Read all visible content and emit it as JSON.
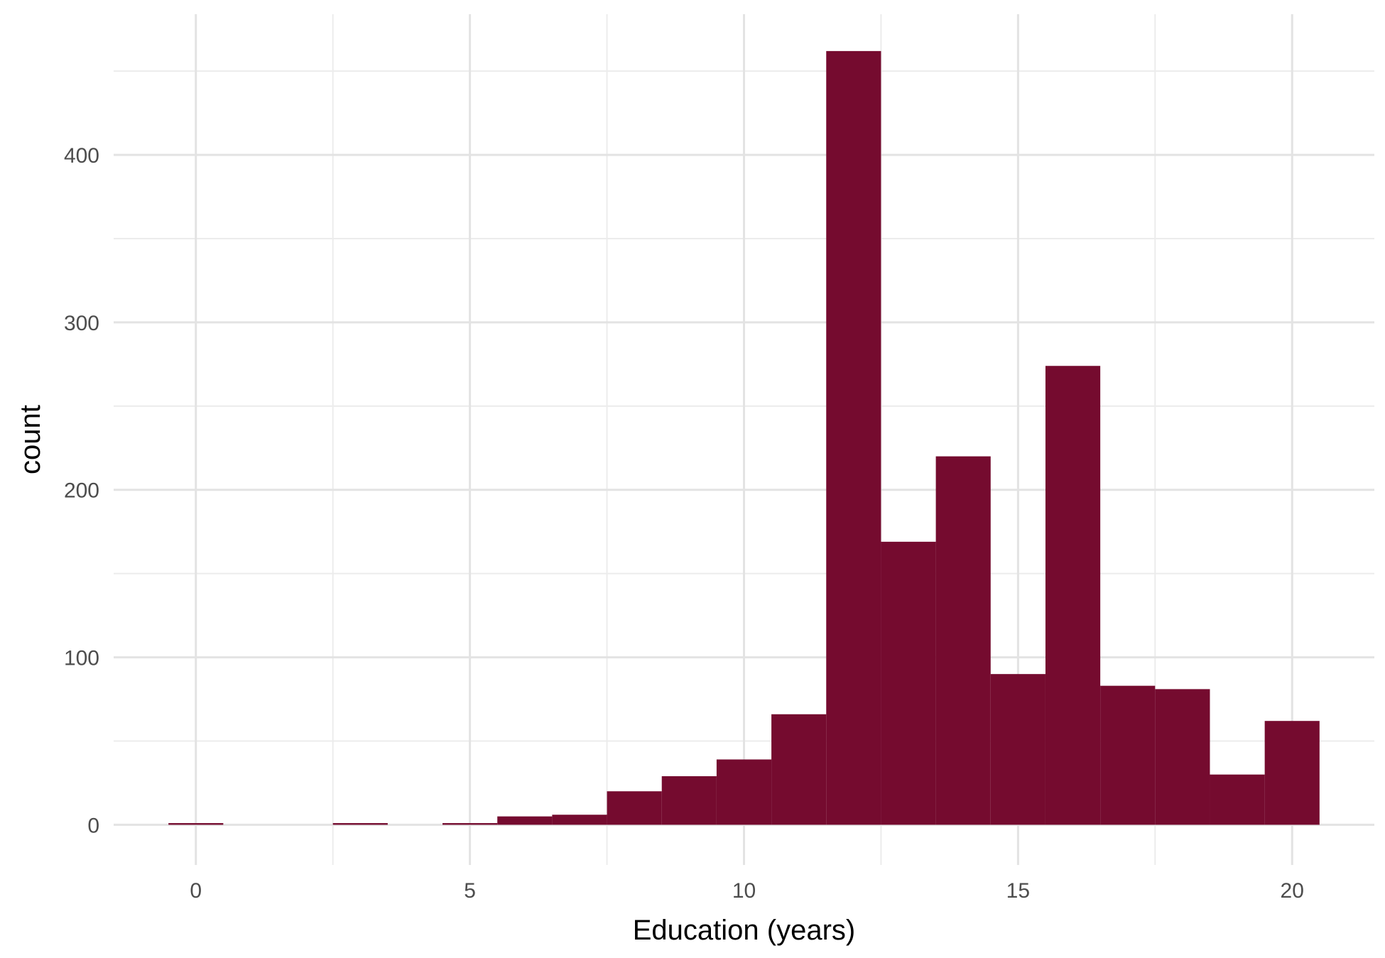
{
  "chart_data": {
    "type": "bar",
    "subtype": "histogram",
    "xlabel": "Education (years)",
    "ylabel": "count",
    "xlim": [
      -1.5,
      21.5
    ],
    "ylim": [
      -24,
      484
    ],
    "x_ticks": [
      0,
      5,
      10,
      15,
      20
    ],
    "y_ticks": [
      0,
      100,
      200,
      300,
      400
    ],
    "bin_width": 1,
    "bars": [
      {
        "x": 0,
        "count": 1
      },
      {
        "x": 3,
        "count": 1
      },
      {
        "x": 5,
        "count": 1
      },
      {
        "x": 6,
        "count": 5
      },
      {
        "x": 7,
        "count": 6
      },
      {
        "x": 8,
        "count": 20
      },
      {
        "x": 9,
        "count": 29
      },
      {
        "x": 10,
        "count": 39
      },
      {
        "x": 11,
        "count": 66
      },
      {
        "x": 12,
        "count": 462
      },
      {
        "x": 13,
        "count": 169
      },
      {
        "x": 14,
        "count": 220
      },
      {
        "x": 15,
        "count": 90
      },
      {
        "x": 16,
        "count": 274
      },
      {
        "x": 17,
        "count": 83
      },
      {
        "x": 18,
        "count": 81
      },
      {
        "x": 19,
        "count": 30
      },
      {
        "x": 20,
        "count": 62
      }
    ],
    "bar_color": "#750b2f",
    "grid": true,
    "legend": "none"
  }
}
